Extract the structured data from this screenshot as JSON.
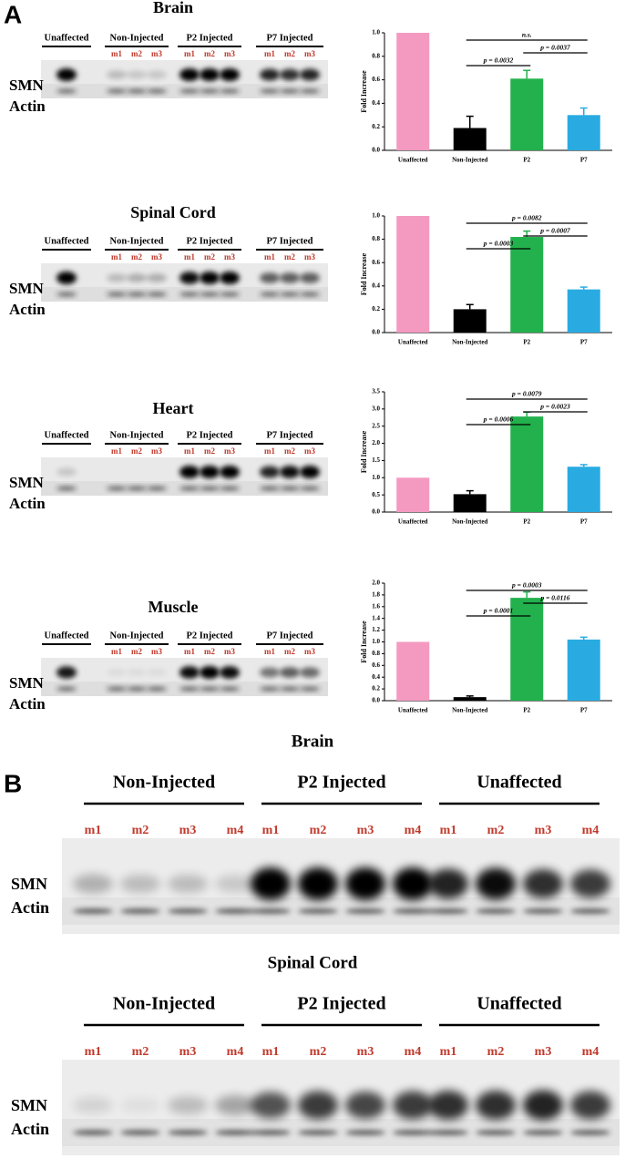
{
  "panel_a": {
    "label": "A",
    "blots": [
      {
        "title": "Brain",
        "groups": [
          "Unaffected",
          "Non-Injected",
          "P2 Injected",
          "P7 Injected"
        ],
        "lanes": [
          "m1",
          "m2",
          "m3"
        ],
        "rows": [
          "SMN",
          "Actin"
        ]
      },
      {
        "title": "Spinal Cord",
        "groups": [
          "Unaffected",
          "Non-Injected",
          "P2 Injected",
          "P7 Injected"
        ],
        "lanes": [
          "m1",
          "m2",
          "m3"
        ],
        "rows": [
          "SMN",
          "Actin"
        ]
      },
      {
        "title": "Heart",
        "groups": [
          "Unaffected",
          "Non-Injected",
          "P2 Injected",
          "P7 Injected"
        ],
        "lanes": [
          "m1",
          "m2",
          "m3"
        ],
        "rows": [
          "SMN",
          "Actin"
        ]
      },
      {
        "title": "Muscle",
        "groups": [
          "Unaffected",
          "Non-Injected",
          "P2 Injected",
          "P7 Injected"
        ],
        "lanes": [
          "m1",
          "m2",
          "m3"
        ],
        "rows": [
          "SMN",
          "Actin"
        ]
      }
    ]
  },
  "chart_data": [
    {
      "type": "bar",
      "ylabel": "Fold Increase",
      "categories": [
        "Unaffected",
        "Non-Injected",
        "P2",
        "P7"
      ],
      "values": [
        1.0,
        0.19,
        0.61,
        0.3
      ],
      "errors": [
        null,
        0.1,
        0.07,
        0.06
      ],
      "colors": [
        "#f49ac1",
        "#000000",
        "#22b14c",
        "#29abe2"
      ],
      "ylim": [
        0,
        1.0
      ],
      "yticks": [
        {
          "value": 0,
          "label": "0.0"
        },
        {
          "value": 0.2,
          "label": "0.2"
        },
        {
          "value": 0.4,
          "label": "0.4"
        },
        {
          "value": 0.6,
          "label": "0.6"
        },
        {
          "value": 0.8,
          "label": "0.8"
        },
        {
          "value": 1.0,
          "label": "1.0"
        }
      ],
      "annotations": [
        {
          "label": "n.s.",
          "from": "Non-Injected",
          "to": "P7"
        },
        {
          "label": "p = 0.0037",
          "from": "P2",
          "to": "P7"
        },
        {
          "label": "p = 0.0032",
          "from": "Non-Injected",
          "to": "P2"
        }
      ]
    },
    {
      "type": "bar",
      "ylabel": "Fold Increase",
      "categories": [
        "Unaffected",
        "Non-Injected",
        "P2",
        "P7"
      ],
      "values": [
        1.0,
        0.2,
        0.82,
        0.37
      ],
      "errors": [
        null,
        0.04,
        0.05,
        0.02
      ],
      "colors": [
        "#f49ac1",
        "#000000",
        "#22b14c",
        "#29abe2"
      ],
      "ylim": [
        0,
        1.0
      ],
      "yticks": [
        {
          "value": 0,
          "label": "0.0"
        },
        {
          "value": 0.2,
          "label": "0.2"
        },
        {
          "value": 0.4,
          "label": "0.4"
        },
        {
          "value": 0.6,
          "label": "0.6"
        },
        {
          "value": 0.8,
          "label": "0.8"
        },
        {
          "value": 1.0,
          "label": "1.0"
        }
      ],
      "annotations": [
        {
          "label": "p = 0.0082",
          "from": "Non-Injected",
          "to": "P7"
        },
        {
          "label": "p = 0.0007",
          "from": "P2",
          "to": "P7"
        },
        {
          "label": "p = 0.0003",
          "from": "Non-Injected",
          "to": "P2"
        }
      ]
    },
    {
      "type": "bar",
      "ylabel": "Fold Increase",
      "categories": [
        "Unaffected",
        "Non-Injected",
        "P2",
        "P7"
      ],
      "values": [
        1.0,
        0.52,
        2.78,
        1.32
      ],
      "errors": [
        null,
        0.1,
        0.13,
        0.06
      ],
      "colors": [
        "#f49ac1",
        "#000000",
        "#22b14c",
        "#29abe2"
      ],
      "ylim": [
        0,
        3.5
      ],
      "yticks": [
        {
          "value": 0,
          "label": "0.0"
        },
        {
          "value": 0.5,
          "label": "0.5"
        },
        {
          "value": 1.0,
          "label": "1.0"
        },
        {
          "value": 1.5,
          "label": "1.5"
        },
        {
          "value": 2.0,
          "label": "2.0"
        },
        {
          "value": 2.5,
          "label": "2.5"
        },
        {
          "value": 3.0,
          "label": "3.0"
        },
        {
          "value": 3.5,
          "label": "3.5"
        }
      ],
      "annotations": [
        {
          "label": "p = 0.0079",
          "from": "Non-Injected",
          "to": "P7"
        },
        {
          "label": "p = 0.0023",
          "from": "P2",
          "to": "P7"
        },
        {
          "label": "p = 0.0006",
          "from": "Non-Injected",
          "to": "P2"
        }
      ]
    },
    {
      "type": "bar",
      "ylabel": "Fold Increase",
      "categories": [
        "Unaffected",
        "Non-Injected",
        "P2",
        "P7"
      ],
      "values": [
        1.0,
        0.06,
        1.75,
        1.04
      ],
      "errors": [
        null,
        0.02,
        0.1,
        0.04
      ],
      "colors": [
        "#f49ac1",
        "#000000",
        "#22b14c",
        "#29abe2"
      ],
      "ylim": [
        0,
        2.0
      ],
      "yticks": [
        {
          "value": 0,
          "label": "0.0"
        },
        {
          "value": 0.2,
          "label": "0.2"
        },
        {
          "value": 0.4,
          "label": "0.4"
        },
        {
          "value": 0.6,
          "label": "0.6"
        },
        {
          "value": 0.8,
          "label": "0.8"
        },
        {
          "value": 1.0,
          "label": "1.0"
        },
        {
          "value": 1.2,
          "label": "1.2"
        },
        {
          "value": 1.4,
          "label": "1.4"
        },
        {
          "value": 1.6,
          "label": "1.6"
        },
        {
          "value": 1.8,
          "label": "1.8"
        },
        {
          "value": 2.0,
          "label": "2.0"
        }
      ],
      "annotations": [
        {
          "label": "p = 0.0003",
          "from": "Non-Injected",
          "to": "P7"
        },
        {
          "label": "p = 0.0116",
          "from": "P2",
          "to": "P7"
        },
        {
          "label": "p = 0.0001",
          "from": "Non-Injected",
          "to": "P2"
        }
      ]
    }
  ],
  "panel_b": {
    "label": "B",
    "blots": [
      {
        "title": "Brain",
        "groups": [
          "Non-Injected",
          "P2 Injected",
          "Unaffected"
        ],
        "lanes": [
          "m1",
          "m2",
          "m3",
          "m4"
        ],
        "rows": [
          "SMN",
          "Actin"
        ]
      },
      {
        "title": "Spinal Cord",
        "groups": [
          "Non-Injected",
          "P2 Injected",
          "Unaffected"
        ],
        "lanes": [
          "m1",
          "m2",
          "m3",
          "m4"
        ],
        "rows": [
          "SMN",
          "Actin"
        ]
      }
    ]
  }
}
